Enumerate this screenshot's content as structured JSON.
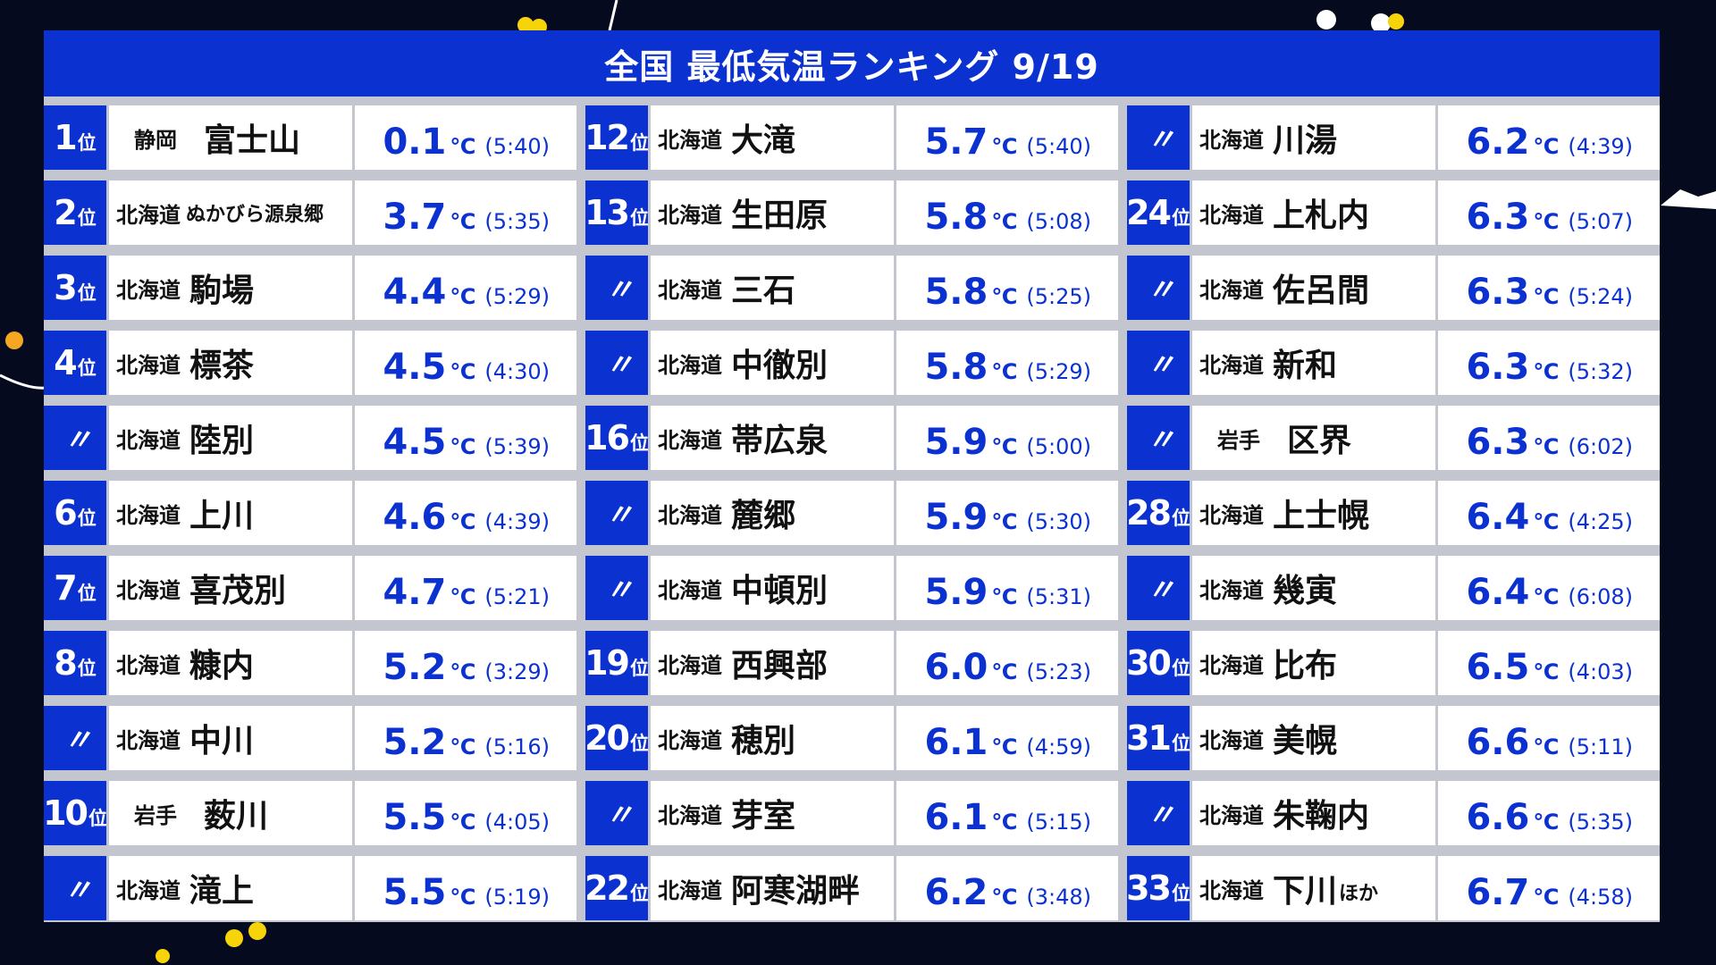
{
  "title": "全国 最低気温ランキング 9/19",
  "unit": "℃",
  "ditto_mark": "〃",
  "rank_suffix": "位",
  "columns": [
    [
      {
        "rank": "1",
        "pref": "静岡",
        "city": "富士山",
        "extra": "",
        "temp": "0.1",
        "time": "(5:40)"
      },
      {
        "rank": "2",
        "pref": "北海道",
        "city": "ぬかびら源泉郷",
        "extra": "",
        "temp": "3.7",
        "time": "(5:35)"
      },
      {
        "rank": "3",
        "pref": "北海道",
        "city": "駒場",
        "extra": "",
        "temp": "4.4",
        "time": "(5:29)"
      },
      {
        "rank": "4",
        "pref": "北海道",
        "city": "標茶",
        "extra": "",
        "temp": "4.5",
        "time": "(4:30)"
      },
      {
        "rank": "",
        "pref": "北海道",
        "city": "陸別",
        "extra": "",
        "temp": "4.5",
        "time": "(5:39)"
      },
      {
        "rank": "6",
        "pref": "北海道",
        "city": "上川",
        "extra": "",
        "temp": "4.6",
        "time": "(4:39)"
      },
      {
        "rank": "7",
        "pref": "北海道",
        "city": "喜茂別",
        "extra": "",
        "temp": "4.7",
        "time": "(5:21)"
      },
      {
        "rank": "8",
        "pref": "北海道",
        "city": "糠内",
        "extra": "",
        "temp": "5.2",
        "time": "(3:29)"
      },
      {
        "rank": "",
        "pref": "北海道",
        "city": "中川",
        "extra": "",
        "temp": "5.2",
        "time": "(5:16)"
      },
      {
        "rank": "10",
        "pref": "岩手",
        "city": "薮川",
        "extra": "",
        "temp": "5.5",
        "time": "(4:05)"
      },
      {
        "rank": "",
        "pref": "北海道",
        "city": "滝上",
        "extra": "",
        "temp": "5.5",
        "time": "(5:19)"
      }
    ],
    [
      {
        "rank": "12",
        "pref": "北海道",
        "city": "大滝",
        "extra": "",
        "temp": "5.7",
        "time": "(5:40)"
      },
      {
        "rank": "13",
        "pref": "北海道",
        "city": "生田原",
        "extra": "",
        "temp": "5.8",
        "time": "(5:08)"
      },
      {
        "rank": "",
        "pref": "北海道",
        "city": "三石",
        "extra": "",
        "temp": "5.8",
        "time": "(5:25)"
      },
      {
        "rank": "",
        "pref": "北海道",
        "city": "中徹別",
        "extra": "",
        "temp": "5.8",
        "time": "(5:29)"
      },
      {
        "rank": "16",
        "pref": "北海道",
        "city": "帯広泉",
        "extra": "",
        "temp": "5.9",
        "time": "(5:00)"
      },
      {
        "rank": "",
        "pref": "北海道",
        "city": "麓郷",
        "extra": "",
        "temp": "5.9",
        "time": "(5:30)"
      },
      {
        "rank": "",
        "pref": "北海道",
        "city": "中頓別",
        "extra": "",
        "temp": "5.9",
        "time": "(5:31)"
      },
      {
        "rank": "19",
        "pref": "北海道",
        "city": "西興部",
        "extra": "",
        "temp": "6.0",
        "time": "(5:23)"
      },
      {
        "rank": "20",
        "pref": "北海道",
        "city": "穂別",
        "extra": "",
        "temp": "6.1",
        "time": "(4:59)"
      },
      {
        "rank": "",
        "pref": "北海道",
        "city": "芽室",
        "extra": "",
        "temp": "6.1",
        "time": "(5:15)"
      },
      {
        "rank": "22",
        "pref": "北海道",
        "city": "阿寒湖畔",
        "extra": "",
        "temp": "6.2",
        "time": "(3:48)"
      }
    ],
    [
      {
        "rank": "",
        "pref": "北海道",
        "city": "川湯",
        "extra": "",
        "temp": "6.2",
        "time": "(4:39)"
      },
      {
        "rank": "24",
        "pref": "北海道",
        "city": "上札内",
        "extra": "",
        "temp": "6.3",
        "time": "(5:07)"
      },
      {
        "rank": "",
        "pref": "北海道",
        "city": "佐呂間",
        "extra": "",
        "temp": "6.3",
        "time": "(5:24)"
      },
      {
        "rank": "",
        "pref": "北海道",
        "city": "新和",
        "extra": "",
        "temp": "6.3",
        "time": "(5:32)"
      },
      {
        "rank": "",
        "pref": "岩手",
        "city": "区界",
        "extra": "",
        "temp": "6.3",
        "time": "(6:02)"
      },
      {
        "rank": "28",
        "pref": "北海道",
        "city": "上士幌",
        "extra": "",
        "temp": "6.4",
        "time": "(4:25)"
      },
      {
        "rank": "",
        "pref": "北海道",
        "city": "幾寅",
        "extra": "",
        "temp": "6.4",
        "time": "(6:08)"
      },
      {
        "rank": "30",
        "pref": "北海道",
        "city": "比布",
        "extra": "",
        "temp": "6.5",
        "time": "(4:03)"
      },
      {
        "rank": "31",
        "pref": "北海道",
        "city": "美幌",
        "extra": "",
        "temp": "6.6",
        "time": "(5:11)"
      },
      {
        "rank": "",
        "pref": "北海道",
        "city": "朱鞠内",
        "extra": "",
        "temp": "6.6",
        "time": "(5:35)"
      },
      {
        "rank": "33",
        "pref": "北海道",
        "city": "下川",
        "extra": "ほか",
        "temp": "6.7",
        "time": "(4:58)"
      }
    ]
  ],
  "colors": {
    "accent": "#0b32d0",
    "background": "#050a1f",
    "divider": "#c3c6cf"
  }
}
